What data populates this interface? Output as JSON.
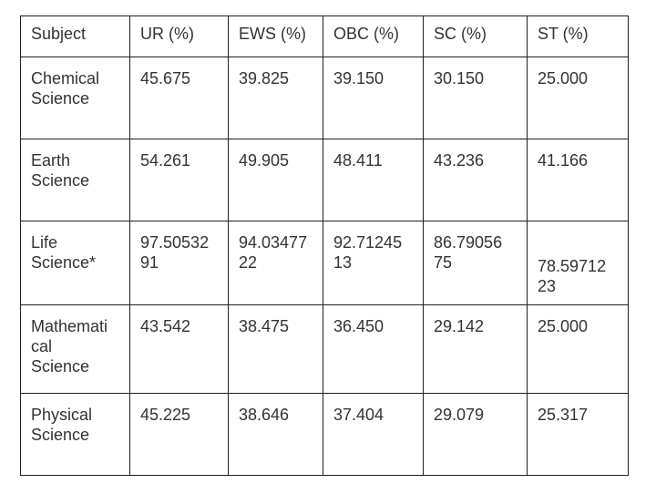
{
  "colors": {
    "background": "#ffffff",
    "border": "#1f1f1f",
    "text": "#333333"
  },
  "table": {
    "headers": [
      "Subject",
      "UR (%)",
      "EWS (%)",
      "OBC (%)",
      "SC (%)",
      "ST (%)"
    ],
    "rows": [
      {
        "cells": [
          "Chemical Science",
          "45.675",
          "39.825",
          "39.150",
          "30.150",
          "25.000"
        ]
      },
      {
        "cells": [
          "Earth Science",
          "54.261",
          "49.905",
          "48.411",
          "43.236",
          "41.166"
        ]
      },
      {
        "cells": [
          "Life Science*",
          "97.5053291",
          "94.0347722",
          "92.7124513",
          "86.7905675",
          "78.5971223"
        ]
      },
      {
        "cells": [
          "Mathematical Science",
          "43.542",
          "38.475",
          "36.450",
          "29.142",
          "25.000"
        ]
      },
      {
        "cells": [
          "Physical Science",
          "45.225",
          "38.646",
          "37.404",
          "29.079",
          "25.317"
        ]
      }
    ]
  },
  "chart_data": {
    "type": "table",
    "columns": [
      "Subject",
      "UR (%)",
      "EWS (%)",
      "OBC (%)",
      "SC (%)",
      "ST (%)"
    ],
    "rows": [
      [
        "Chemical Science",
        45.675,
        39.825,
        39.15,
        30.15,
        25.0
      ],
      [
        "Earth Science",
        54.261,
        49.905,
        48.411,
        43.236,
        41.166
      ],
      [
        "Life Science*",
        97.5053291,
        94.0347722,
        92.7124513,
        86.7905675,
        78.5971223
      ],
      [
        "Mathematical Science",
        43.542,
        38.475,
        36.45,
        29.142,
        25.0
      ],
      [
        "Physical Science",
        45.225,
        38.646,
        37.404,
        29.079,
        25.317
      ]
    ]
  }
}
